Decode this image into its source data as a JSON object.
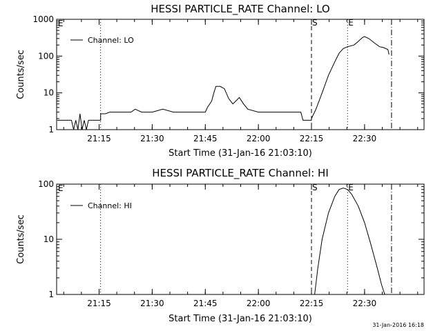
{
  "footer": {
    "stamp": "31-Jan-2016 16:18"
  },
  "chart_data": [
    {
      "type": "line",
      "title": "HESSI PARTICLE_RATE Channel: LO",
      "xlabel": "Start Time (31-Jan-16 21:03:10)",
      "ylabel": "Counts/sec",
      "yscale": "log",
      "ylim": [
        1,
        1000
      ],
      "xlim_minutes": [
        21.05,
        22.78
      ],
      "xticks": [
        {
          "t": 21.25,
          "label": "21:15"
        },
        {
          "t": 21.5,
          "label": "21:30"
        },
        {
          "t": 21.75,
          "label": "21:45"
        },
        {
          "t": 22.0,
          "label": "22:00"
        },
        {
          "t": 22.25,
          "label": "22:15"
        },
        {
          "t": 22.5,
          "label": "22:30"
        }
      ],
      "yticks": [
        {
          "v": 1,
          "label": "1"
        },
        {
          "v": 10,
          "label": "10"
        },
        {
          "v": 100,
          "label": "100"
        },
        {
          "v": 1000,
          "label": "1000"
        }
      ],
      "legend": {
        "position": "top-left",
        "label": "Channel: LO"
      },
      "markers": [
        {
          "t": 21.257,
          "style": "dotted",
          "label": ""
        },
        {
          "t": 22.25,
          "style": "dashed",
          "label": "S"
        },
        {
          "t": 22.42,
          "style": "dotted",
          "label": "E"
        },
        {
          "t": 22.627,
          "style": "dashdot",
          "label": ""
        }
      ],
      "corner_label": "E",
      "series": [
        {
          "name": "",
          "points": [
            [
              21.053,
              1.8
            ],
            [
              21.12,
              1.8
            ],
            [
              21.13,
              1.0
            ],
            [
              21.14,
              1.8
            ],
            [
              21.15,
              1.0
            ],
            [
              21.16,
              2.7
            ],
            [
              21.17,
              1.0
            ],
            [
              21.18,
              1.8
            ],
            [
              21.19,
              1.0
            ],
            [
              21.2,
              1.8
            ],
            [
              21.257,
              1.8
            ],
            [
              21.257,
              2.7
            ],
            [
              21.28,
              2.7
            ],
            [
              21.3,
              3.0
            ],
            [
              21.4,
              3.0
            ],
            [
              21.42,
              3.6
            ],
            [
              21.45,
              3.0
            ],
            [
              21.5,
              3.0
            ],
            [
              21.55,
              3.6
            ],
            [
              21.6,
              3.0
            ],
            [
              21.7,
              3.0
            ],
            [
              21.75,
              3.0
            ],
            [
              21.76,
              4.0
            ],
            [
              21.78,
              6.0
            ],
            [
              21.79,
              10.0
            ],
            [
              21.8,
              15.0
            ],
            [
              21.82,
              15.0
            ],
            [
              21.84,
              13.0
            ],
            [
              21.86,
              7.0
            ],
            [
              21.88,
              5.0
            ],
            [
              21.9,
              6.5
            ],
            [
              21.91,
              7.5
            ],
            [
              21.93,
              5.0
            ],
            [
              21.95,
              3.6
            ],
            [
              22.0,
              3.0
            ],
            [
              22.05,
              3.0
            ],
            [
              22.1,
              3.0
            ],
            [
              22.15,
              3.0
            ],
            [
              22.2,
              3.0
            ],
            [
              22.21,
              1.8
            ],
            [
              22.25,
              1.8
            ],
            [
              22.25,
              2.0
            ],
            [
              22.27,
              3.5
            ],
            [
              22.3,
              10.0
            ],
            [
              22.33,
              30.0
            ],
            [
              22.36,
              70.0
            ],
            [
              22.38,
              120.0
            ],
            [
              22.4,
              160.0
            ],
            [
              22.42,
              180.0
            ],
            [
              22.45,
              200.0
            ],
            [
              22.47,
              250.0
            ],
            [
              22.49,
              320.0
            ],
            [
              22.5,
              340.0
            ],
            [
              22.52,
              300.0
            ],
            [
              22.55,
              220.0
            ],
            [
              22.57,
              180.0
            ],
            [
              22.59,
              170.0
            ],
            [
              22.61,
              150.0
            ],
            [
              22.615,
              110.0
            ]
          ]
        }
      ]
    },
    {
      "type": "line",
      "title": "HESSI PARTICLE_RATE Channel: HI",
      "xlabel": "Start Time (31-Jan-16 21:03:10)",
      "ylabel": "Counts/sec",
      "yscale": "log",
      "ylim": [
        1,
        100
      ],
      "xlim_minutes": [
        21.05,
        22.78
      ],
      "xticks": [
        {
          "t": 21.25,
          "label": "21:15"
        },
        {
          "t": 21.5,
          "label": "21:30"
        },
        {
          "t": 21.75,
          "label": "21:45"
        },
        {
          "t": 22.0,
          "label": "22:00"
        },
        {
          "t": 22.25,
          "label": "22:15"
        },
        {
          "t": 22.5,
          "label": "22:30"
        }
      ],
      "yticks": [
        {
          "v": 1,
          "label": "1"
        },
        {
          "v": 10,
          "label": "10"
        },
        {
          "v": 100,
          "label": "100"
        }
      ],
      "legend": {
        "position": "top-left",
        "label": "Channel: HI"
      },
      "markers": [
        {
          "t": 21.257,
          "style": "dotted",
          "label": ""
        },
        {
          "t": 22.25,
          "style": "dashed",
          "label": "S"
        },
        {
          "t": 22.42,
          "style": "dotted",
          "label": "E"
        },
        {
          "t": 22.627,
          "style": "dashdot",
          "label": ""
        }
      ],
      "corner_label": "E",
      "series": [
        {
          "name": "",
          "points": [
            [
              22.265,
              1.0
            ],
            [
              22.28,
              3.0
            ],
            [
              22.3,
              10.0
            ],
            [
              22.33,
              30.0
            ],
            [
              22.36,
              60.0
            ],
            [
              22.38,
              80.0
            ],
            [
              22.4,
              85.0
            ],
            [
              22.42,
              80.0
            ],
            [
              22.44,
              65.0
            ],
            [
              22.47,
              40.0
            ],
            [
              22.5,
              20.0
            ],
            [
              22.53,
              8.0
            ],
            [
              22.56,
              3.0
            ],
            [
              22.58,
              1.5
            ],
            [
              22.595,
              1.0
            ]
          ]
        }
      ]
    }
  ]
}
